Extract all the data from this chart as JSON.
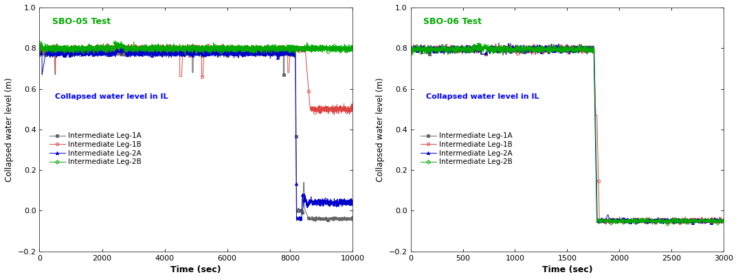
{
  "plot1": {
    "title": "SBO-05 Test",
    "title_color": "#00aa00",
    "xlabel": "Time (sec)",
    "ylabel": "Collapsed water level (m)",
    "xlim": [
      0,
      10000
    ],
    "ylim": [
      -0.2,
      1.0
    ],
    "xticks": [
      0,
      2000,
      4000,
      6000,
      8000,
      10000
    ],
    "yticks": [
      -0.2,
      0.0,
      0.2,
      0.4,
      0.6,
      0.8,
      1.0
    ],
    "legend_title": "Collapsed water level in IL",
    "legend_title_color": "#0000FF",
    "series": [
      {
        "label": "Intermediate Leg-1A",
        "color": "#666666",
        "marker": "s",
        "mfc": "#666666",
        "mec": "#666666"
      },
      {
        "label": "Intermediate Leg-1B",
        "color": "#dd4444",
        "marker": "o",
        "mfc": "none",
        "mec": "#dd4444"
      },
      {
        "label": "Intermediate Leg-2A",
        "color": "#0000cc",
        "marker": "^",
        "mfc": "#0000cc",
        "mec": "#0000cc"
      },
      {
        "label": "Intermediate Leg-2B",
        "color": "#00aa00",
        "marker": "D",
        "mfc": "none",
        "mec": "#00aa00"
      }
    ]
  },
  "plot2": {
    "title": "SBO-06 Test",
    "title_color": "#00aa00",
    "xlabel": "Time (sec)",
    "ylabel": "Collapsed water level (m)",
    "xlim": [
      0,
      3000
    ],
    "ylim": [
      -0.2,
      1.0
    ],
    "xticks": [
      0,
      500,
      1000,
      1500,
      2000,
      2500,
      3000
    ],
    "yticks": [
      -0.2,
      0.0,
      0.2,
      0.4,
      0.6,
      0.8,
      1.0
    ],
    "legend_title": "Collapsed water level in IL",
    "legend_title_color": "#0000FF",
    "series": [
      {
        "label": "Intermediate Leg-1A",
        "color": "#666666",
        "marker": "s",
        "mfc": "#666666",
        "mec": "#666666"
      },
      {
        "label": "Intermediate Leg-1B",
        "color": "#dd4444",
        "marker": "o",
        "mfc": "none",
        "mec": "#dd4444"
      },
      {
        "label": "Intermediate Leg-2A",
        "color": "#0000cc",
        "marker": "^",
        "mfc": "#0000cc",
        "mec": "#0000cc"
      },
      {
        "label": "Intermediate Leg-2B",
        "color": "#00aa00",
        "marker": "D",
        "mfc": "none",
        "mec": "#00aa00"
      }
    ]
  },
  "figure_bg": "#ffffff",
  "axes_bg": "#ffffff",
  "tick_fontsize": 8,
  "label_fontsize": 9,
  "title_fontsize": 9,
  "legend_fontsize": 7.5,
  "legend_title_fontsize": 8
}
